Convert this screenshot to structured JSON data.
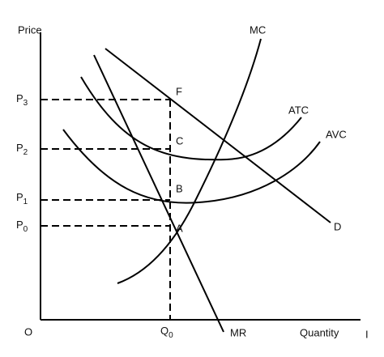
{
  "axis": {
    "y_label": "Price",
    "x_label": "Quantity",
    "origin": "O"
  },
  "prices": [
    {
      "symbol": "P",
      "sub": "3"
    },
    {
      "symbol": "P",
      "sub": "2"
    },
    {
      "symbol": "P",
      "sub": "1"
    },
    {
      "symbol": "P",
      "sub": "0"
    }
  ],
  "quantity": {
    "symbol": "Q",
    "sub": "0"
  },
  "points": [
    "F",
    "C",
    "B",
    "A"
  ],
  "curves": {
    "mc": "MC",
    "atc": "ATC",
    "avc": "AVC",
    "d": "D",
    "mr": "MR"
  },
  "cursor": "I"
}
